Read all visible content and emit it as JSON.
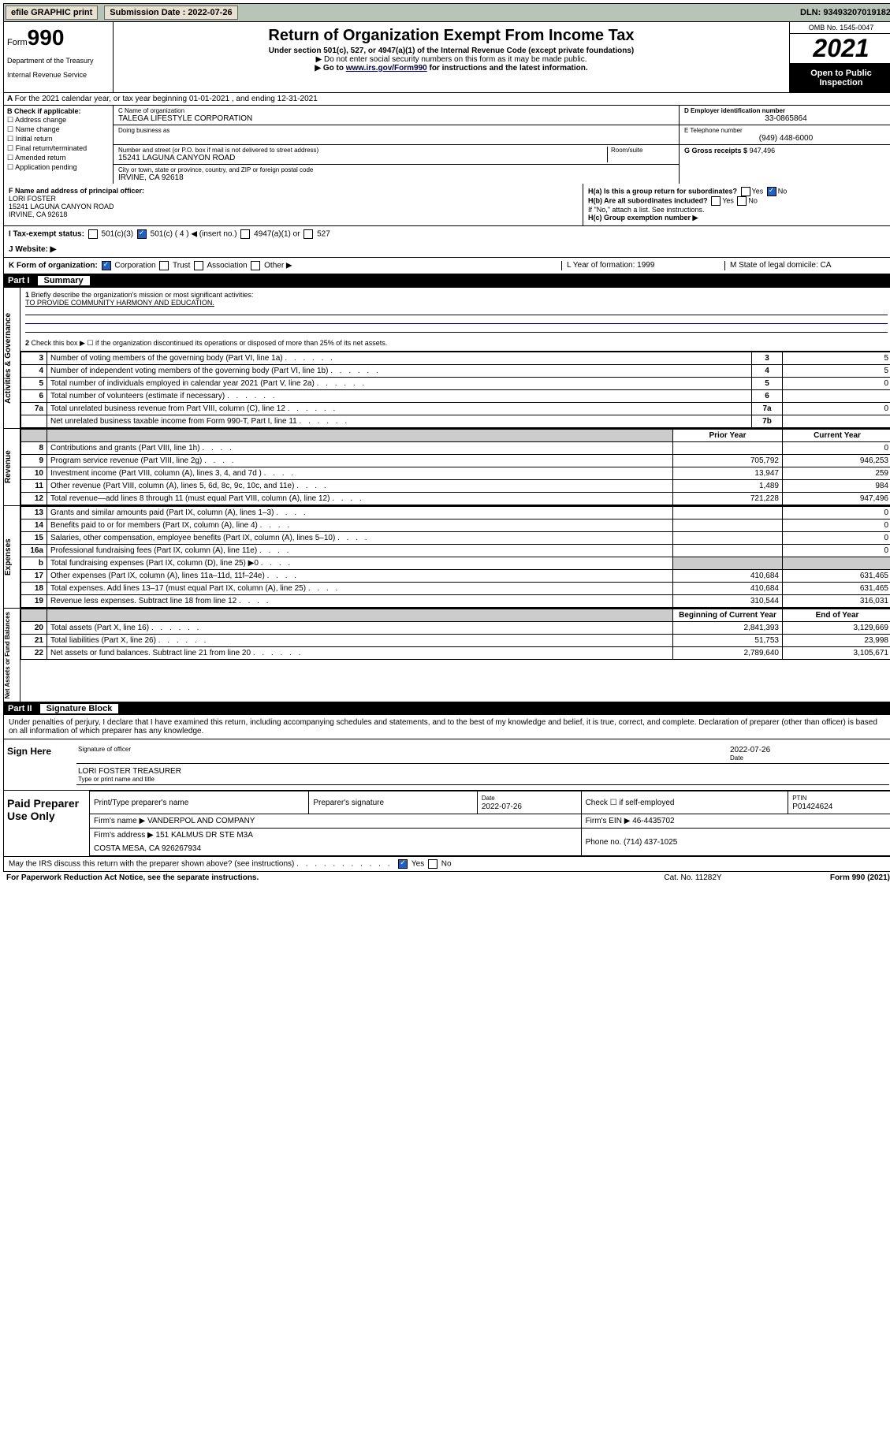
{
  "topbar": {
    "efile": "efile GRAPHIC print",
    "sub_label": "Submission Date : 2022-07-26",
    "dln": "DLN: 93493207019182"
  },
  "header": {
    "form_word": "Form",
    "form_num": "990",
    "dept": "Department of the Treasury",
    "irs": "Internal Revenue Service",
    "title": "Return of Organization Exempt From Income Tax",
    "sub1": "Under section 501(c), 527, or 4947(a)(1) of the Internal Revenue Code (except private foundations)",
    "sub2": "▶ Do not enter social security numbers on this form as it may be made public.",
    "sub3a": "▶ Go to ",
    "sub3link": "www.irs.gov/Form990",
    "sub3b": " for instructions and the latest information.",
    "omb": "OMB No. 1545-0047",
    "year": "2021",
    "open": "Open to Public Inspection"
  },
  "rowA": "For the 2021 calendar year, or tax year beginning 01-01-2021    , and ending 12-31-2021",
  "colB": {
    "title": "B Check if applicable:",
    "items": [
      "Address change",
      "Name change",
      "Initial return",
      "Final return/terminated",
      "Amended return",
      "Application pending"
    ]
  },
  "colC": {
    "name_lab": "C Name of organization",
    "name": "TALEGA LIFESTYLE CORPORATION",
    "dba_lab": "Doing business as",
    "addr_lab": "Number and street (or P.O. box if mail is not delivered to street address)",
    "room_lab": "Room/suite",
    "addr": "15241 LAGUNA CANYON ROAD",
    "city_lab": "City or town, state or province, country, and ZIP or foreign postal code",
    "city": "IRVINE, CA  92618"
  },
  "colD": {
    "ein_lab": "D Employer identification number",
    "ein": "33-0865864",
    "tel_lab": "E Telephone number",
    "tel": "(949) 448-6000",
    "gross_lab": "G Gross receipts $",
    "gross": "947,496"
  },
  "rowF": {
    "lab": "F Name and address of principal officer:",
    "name": "LORI FOSTER",
    "addr1": "15241 LAGUNA CANYON ROAD",
    "addr2": "IRVINE, CA  92618"
  },
  "rowH": {
    "ha": "H(a) Is this a group return for subordinates?",
    "hb": "H(b) Are all subordinates included?",
    "hb2": "If \"No,\" attach a list. See instructions.",
    "hc": "H(c) Group exemption number ▶",
    "yes": "Yes",
    "no": "No"
  },
  "rowI": {
    "lab": "I   Tax-exempt status:",
    "o1": "501(c)(3)",
    "o2": "501(c) ( 4 ) ◀ (insert no.)",
    "o3": "4947(a)(1) or",
    "o4": "527"
  },
  "rowJ": "J   Website: ▶",
  "rowK": {
    "lab": "K Form of organization:",
    "corp": "Corporation",
    "trust": "Trust",
    "assoc": "Association",
    "other": "Other ▶",
    "l": "L Year of formation: 1999",
    "m": "M State of legal domicile: CA"
  },
  "part1": {
    "num": "Part I",
    "title": "Summary"
  },
  "gov": {
    "l1": "Briefly describe the organization's mission or most significant activities:",
    "mission": "TO PROVIDE COMMUNITY HARMONY AND EDUCATION.",
    "l2": "Check this box ▶ ☐  if the organization discontinued its operations or disposed of more than 25% of its net assets.",
    "rows": [
      {
        "n": "3",
        "d": "Number of voting members of the governing body (Part VI, line 1a)",
        "b": "3",
        "v": "5"
      },
      {
        "n": "4",
        "d": "Number of independent voting members of the governing body (Part VI, line 1b)",
        "b": "4",
        "v": "5"
      },
      {
        "n": "5",
        "d": "Total number of individuals employed in calendar year 2021 (Part V, line 2a)",
        "b": "5",
        "v": "0"
      },
      {
        "n": "6",
        "d": "Total number of volunteers (estimate if necessary)",
        "b": "6",
        "v": ""
      },
      {
        "n": "7a",
        "d": "Total unrelated business revenue from Part VIII, column (C), line 12",
        "b": "7a",
        "v": "0"
      },
      {
        "n": "",
        "d": "Net unrelated business taxable income from Form 990-T, Part I, line 11",
        "b": "7b",
        "v": ""
      }
    ]
  },
  "cols": {
    "prior": "Prior Year",
    "current": "Current Year",
    "boy": "Beginning of Current Year",
    "eoy": "End of Year"
  },
  "rev": [
    {
      "n": "8",
      "d": "Contributions and grants (Part VIII, line 1h)",
      "p": "",
      "c": "0"
    },
    {
      "n": "9",
      "d": "Program service revenue (Part VIII, line 2g)",
      "p": "705,792",
      "c": "946,253"
    },
    {
      "n": "10",
      "d": "Investment income (Part VIII, column (A), lines 3, 4, and 7d )",
      "p": "13,947",
      "c": "259"
    },
    {
      "n": "11",
      "d": "Other revenue (Part VIII, column (A), lines 5, 6d, 8c, 9c, 10c, and 11e)",
      "p": "1,489",
      "c": "984"
    },
    {
      "n": "12",
      "d": "Total revenue—add lines 8 through 11 (must equal Part VIII, column (A), line 12)",
      "p": "721,228",
      "c": "947,496"
    }
  ],
  "exp": [
    {
      "n": "13",
      "d": "Grants and similar amounts paid (Part IX, column (A), lines 1–3)",
      "p": "",
      "c": "0"
    },
    {
      "n": "14",
      "d": "Benefits paid to or for members (Part IX, column (A), line 4)",
      "p": "",
      "c": "0"
    },
    {
      "n": "15",
      "d": "Salaries, other compensation, employee benefits (Part IX, column (A), lines 5–10)",
      "p": "",
      "c": "0"
    },
    {
      "n": "16a",
      "d": "Professional fundraising fees (Part IX, column (A), line 11e)",
      "p": "",
      "c": "0"
    },
    {
      "n": "b",
      "d": "Total fundraising expenses (Part IX, column (D), line 25) ▶0",
      "p": "GREY",
      "c": "GREY"
    },
    {
      "n": "17",
      "d": "Other expenses (Part IX, column (A), lines 11a–11d, 11f–24e)",
      "p": "410,684",
      "c": "631,465"
    },
    {
      "n": "18",
      "d": "Total expenses. Add lines 13–17 (must equal Part IX, column (A), line 25)",
      "p": "410,684",
      "c": "631,465"
    },
    {
      "n": "19",
      "d": "Revenue less expenses. Subtract line 18 from line 12",
      "p": "310,544",
      "c": "316,031"
    }
  ],
  "net": [
    {
      "n": "20",
      "d": "Total assets (Part X, line 16)",
      "p": "2,841,393",
      "c": "3,129,669"
    },
    {
      "n": "21",
      "d": "Total liabilities (Part X, line 26)",
      "p": "51,753",
      "c": "23,998"
    },
    {
      "n": "22",
      "d": "Net assets or fund balances. Subtract line 21 from line 20",
      "p": "2,789,640",
      "c": "3,105,671"
    }
  ],
  "part2": {
    "num": "Part II",
    "title": "Signature Block"
  },
  "sig": {
    "decl": "Under penalties of perjury, I declare that I have examined this return, including accompanying schedules and statements, and to the best of my knowledge and belief, it is true, correct, and complete. Declaration of preparer (other than officer) is based on all information of which preparer has any knowledge.",
    "sign_here": "Sign Here",
    "sig_officer": "Signature of officer",
    "date": "2022-07-26",
    "date_lab": "Date",
    "name": "LORI FOSTER  TREASURER",
    "name_lab": "Type or print name and title",
    "paid": "Paid Preparer Use Only",
    "pt_name_lab": "Print/Type preparer's name",
    "pt_sig_lab": "Preparer's signature",
    "pt_date": "2022-07-26",
    "check_if": "Check ☐ if self-employed",
    "ptin_lab": "PTIN",
    "ptin": "P01424624",
    "firm_name_lab": "Firm's name     ▶",
    "firm_name": "VANDERPOL AND COMPANY",
    "firm_ein_lab": "Firm's EIN ▶",
    "firm_ein": "46-4435702",
    "firm_addr_lab": "Firm's address ▶",
    "firm_addr1": "151 KALMUS DR STE M3A",
    "firm_addr2": "COSTA MESA, CA  926267934",
    "phone_lab": "Phone no.",
    "phone": "(714) 437-1025",
    "discuss": "May the IRS discuss this return with the preparer shown above? (see instructions)"
  },
  "footer": {
    "l": "For Paperwork Reduction Act Notice, see the separate instructions.",
    "c": "Cat. No. 11282Y",
    "r": "Form 990 (2021)"
  },
  "vlabels": {
    "gov": "Activities & Governance",
    "rev": "Revenue",
    "exp": "Expenses",
    "net": "Net Assets or Fund Balances"
  }
}
